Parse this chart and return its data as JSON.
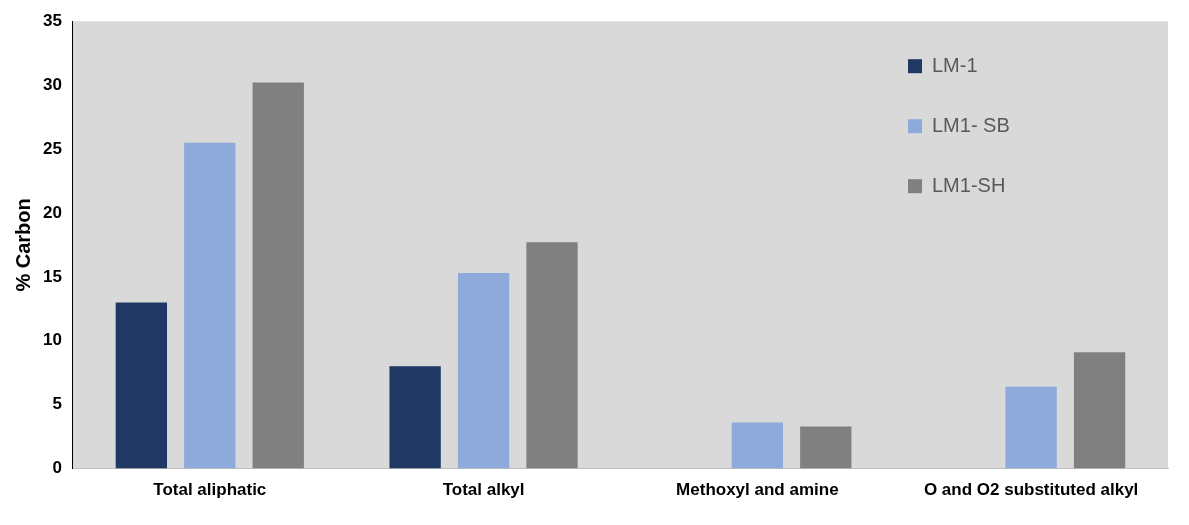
{
  "chart_data": {
    "type": "bar",
    "ylabel": "% Carbon",
    "categories": [
      "Total aliphatic",
      "Total alkyl",
      "Methoxyl and amine",
      "O and O2 substituted alkyl"
    ],
    "series": [
      {
        "name": "LM-1",
        "color": "#1f3864",
        "values": [
          13,
          8,
          0,
          0
        ]
      },
      {
        "name": "LM1- SB",
        "color": "#8eaadb",
        "values": [
          25.5,
          15.3,
          3.6,
          6.4
        ]
      },
      {
        "name": "LM1-SH",
        "color": "#808080",
        "values": [
          30.2,
          17.7,
          3.3,
          9.1
        ]
      }
    ],
    "ylim": [
      0,
      35
    ],
    "yticks": [
      0,
      5,
      10,
      15,
      20,
      25,
      30,
      35
    ],
    "grid": false,
    "legend": "top right"
  }
}
